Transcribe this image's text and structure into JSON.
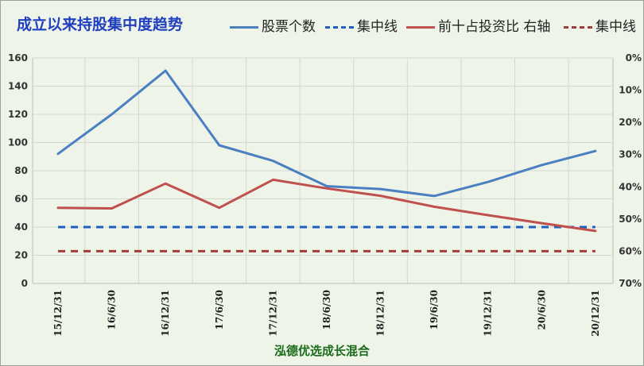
{
  "header": {
    "title": "成立以来持股集中度趋势"
  },
  "footer": {
    "text": "泓德优选成长混合"
  },
  "chart_data": {
    "type": "line",
    "title": "成立以来持股集中度趋势",
    "categories": [
      "15/12/31",
      "16/6/30",
      "16/12/31",
      "17/6/30",
      "17/12/31",
      "18/6/30",
      "18/12/31",
      "19/6/30",
      "19/12/31",
      "20/6/30",
      "20/12/31"
    ],
    "left_axis": {
      "ylim": [
        0,
        160
      ],
      "ticks": [
        "0",
        "20",
        "40",
        "60",
        "80",
        "100",
        "120",
        "140",
        "160"
      ]
    },
    "right_axis": {
      "ylim": [
        0,
        0.7
      ],
      "inverted": true,
      "ticks": [
        "0%",
        "10%",
        "20%",
        "30%",
        "40%",
        "50%",
        "60%",
        "70%"
      ]
    },
    "grid": true,
    "legend_position": "top-right",
    "series": [
      {
        "name": "股票个数",
        "axis": "left",
        "style": "solid",
        "color": "#4a7fc1",
        "values": [
          92,
          120,
          151,
          98,
          87,
          69,
          67,
          62,
          72,
          84,
          94
        ]
      },
      {
        "name": "集中线",
        "axis": "left",
        "style": "dashed",
        "color": "#1f5fbf",
        "values": [
          40,
          40,
          40,
          40,
          40,
          40,
          40,
          40,
          40,
          40,
          40
        ]
      },
      {
        "name": "前十占投资比 右轴",
        "axis": "right",
        "style": "solid",
        "color": "#c0504d",
        "values": [
          0.465,
          0.467,
          0.39,
          0.465,
          0.378,
          0.405,
          0.428,
          0.462,
          0.488,
          0.513,
          0.537
        ]
      },
      {
        "name": "集中线",
        "axis": "right",
        "style": "dashed",
        "color": "#a33a3a",
        "values": [
          0.6,
          0.6,
          0.6,
          0.6,
          0.6,
          0.6,
          0.6,
          0.6,
          0.6,
          0.6,
          0.6
        ]
      }
    ]
  }
}
